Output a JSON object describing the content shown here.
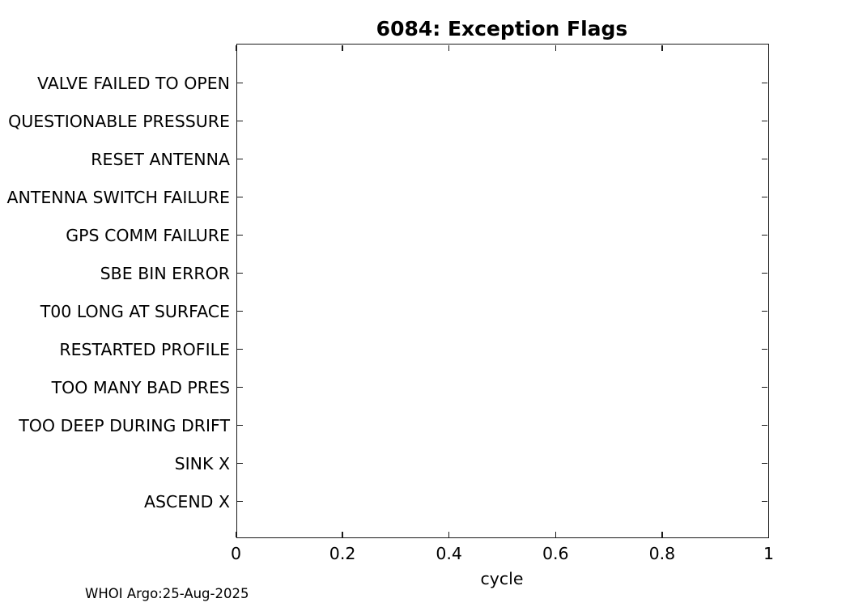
{
  "title": "6084: Exception Flags",
  "footer": "WHOI Argo:25-Aug-2025",
  "colors": {
    "background": "#ffffff",
    "text": "#000000",
    "axis": "#1a1a1a"
  },
  "chart_data": {
    "type": "scatter",
    "title": "6084: Exception Flags",
    "xlabel": "cycle",
    "ylabel": "",
    "xlim": [
      0,
      1
    ],
    "xticks": {
      "values": [
        0,
        0.2,
        0.4,
        0.6,
        0.8,
        1
      ],
      "labels": [
        "0",
        "0.2",
        "0.4",
        "0.6",
        "0.8",
        "1"
      ]
    },
    "categories": [
      "VALVE FAILED TO OPEN",
      "QUESTIONABLE PRESSURE",
      "RESET ANTENNA",
      "ANTENNA SWITCH FAILURE",
      "GPS COMM FAILURE",
      "SBE BIN ERROR",
      "T00 LONG AT SURFACE",
      "RESTARTED PROFILE",
      "TOO MANY BAD PRES",
      "TOO DEEP DURING DRIFT",
      "SINK X",
      "ASCEND X"
    ],
    "series": [],
    "points": [],
    "grid": false,
    "legend": null,
    "box": true,
    "tick_direction": "in"
  }
}
